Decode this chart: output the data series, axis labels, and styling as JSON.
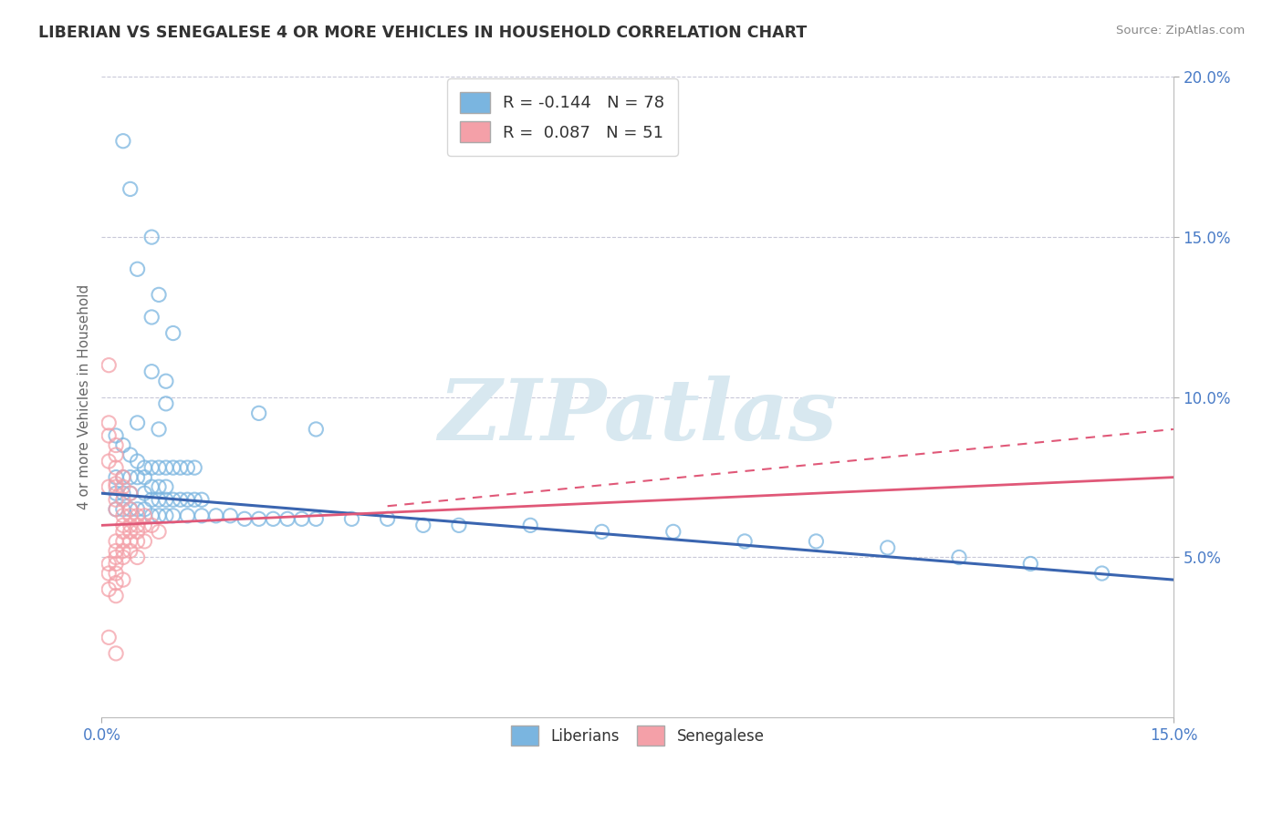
{
  "title": "LIBERIAN VS SENEGALESE 4 OR MORE VEHICLES IN HOUSEHOLD CORRELATION CHART",
  "source": "Source: ZipAtlas.com",
  "ylabel": "4 or more Vehicles in Household",
  "x_min": 0.0,
  "x_max": 0.15,
  "y_min": 0.0,
  "y_max": 0.2,
  "liberian_color": "#7ab5e0",
  "senegalese_color": "#f4a0a8",
  "liberian_line_color": "#3a65b0",
  "senegalese_line_color": "#e05878",
  "liberian_R": -0.144,
  "liberian_N": 78,
  "senegalese_R": 0.087,
  "senegalese_N": 51,
  "watermark_text": "ZIPatlas",
  "watermark_color": "#d8e8f0",
  "tick_color": "#4a7cc7",
  "grid_color": "#c8c8d8",
  "yticks": [
    0.05,
    0.1,
    0.15,
    0.2
  ],
  "ytick_labels": [
    "5.0%",
    "10.0%",
    "15.0%",
    "20.0%"
  ],
  "liberian_points": [
    [
      0.003,
      0.18
    ],
    [
      0.004,
      0.165
    ],
    [
      0.007,
      0.15
    ],
    [
      0.005,
      0.14
    ],
    [
      0.008,
      0.132
    ],
    [
      0.007,
      0.125
    ],
    [
      0.01,
      0.12
    ],
    [
      0.007,
      0.108
    ],
    [
      0.009,
      0.105
    ],
    [
      0.009,
      0.098
    ],
    [
      0.022,
      0.095
    ],
    [
      0.005,
      0.092
    ],
    [
      0.008,
      0.09
    ],
    [
      0.03,
      0.09
    ],
    [
      0.002,
      0.088
    ],
    [
      0.003,
      0.085
    ],
    [
      0.004,
      0.082
    ],
    [
      0.005,
      0.08
    ],
    [
      0.006,
      0.078
    ],
    [
      0.007,
      0.078
    ],
    [
      0.008,
      0.078
    ],
    [
      0.009,
      0.078
    ],
    [
      0.01,
      0.078
    ],
    [
      0.011,
      0.078
    ],
    [
      0.012,
      0.078
    ],
    [
      0.013,
      0.078
    ],
    [
      0.002,
      0.075
    ],
    [
      0.003,
      0.075
    ],
    [
      0.004,
      0.075
    ],
    [
      0.005,
      0.075
    ],
    [
      0.006,
      0.075
    ],
    [
      0.007,
      0.072
    ],
    [
      0.008,
      0.072
    ],
    [
      0.009,
      0.072
    ],
    [
      0.002,
      0.07
    ],
    [
      0.003,
      0.07
    ],
    [
      0.004,
      0.07
    ],
    [
      0.006,
      0.07
    ],
    [
      0.007,
      0.068
    ],
    [
      0.008,
      0.068
    ],
    [
      0.009,
      0.068
    ],
    [
      0.01,
      0.068
    ],
    [
      0.011,
      0.068
    ],
    [
      0.012,
      0.068
    ],
    [
      0.013,
      0.068
    ],
    [
      0.014,
      0.068
    ],
    [
      0.002,
      0.065
    ],
    [
      0.003,
      0.065
    ],
    [
      0.004,
      0.065
    ],
    [
      0.005,
      0.065
    ],
    [
      0.006,
      0.065
    ],
    [
      0.007,
      0.063
    ],
    [
      0.008,
      0.063
    ],
    [
      0.009,
      0.063
    ],
    [
      0.01,
      0.063
    ],
    [
      0.012,
      0.063
    ],
    [
      0.014,
      0.063
    ],
    [
      0.016,
      0.063
    ],
    [
      0.018,
      0.063
    ],
    [
      0.02,
      0.062
    ],
    [
      0.022,
      0.062
    ],
    [
      0.024,
      0.062
    ],
    [
      0.026,
      0.062
    ],
    [
      0.028,
      0.062
    ],
    [
      0.03,
      0.062
    ],
    [
      0.035,
      0.062
    ],
    [
      0.04,
      0.062
    ],
    [
      0.045,
      0.06
    ],
    [
      0.05,
      0.06
    ],
    [
      0.06,
      0.06
    ],
    [
      0.07,
      0.058
    ],
    [
      0.08,
      0.058
    ],
    [
      0.09,
      0.055
    ],
    [
      0.1,
      0.055
    ],
    [
      0.11,
      0.053
    ],
    [
      0.12,
      0.05
    ],
    [
      0.13,
      0.048
    ],
    [
      0.14,
      0.045
    ]
  ],
  "senegalese_points": [
    [
      0.001,
      0.11
    ],
    [
      0.001,
      0.092
    ],
    [
      0.001,
      0.088
    ],
    [
      0.002,
      0.085
    ],
    [
      0.002,
      0.082
    ],
    [
      0.001,
      0.08
    ],
    [
      0.002,
      0.078
    ],
    [
      0.003,
      0.075
    ],
    [
      0.002,
      0.073
    ],
    [
      0.001,
      0.072
    ],
    [
      0.002,
      0.072
    ],
    [
      0.003,
      0.072
    ],
    [
      0.004,
      0.07
    ],
    [
      0.002,
      0.068
    ],
    [
      0.003,
      0.068
    ],
    [
      0.004,
      0.065
    ],
    [
      0.002,
      0.065
    ],
    [
      0.003,
      0.063
    ],
    [
      0.004,
      0.063
    ],
    [
      0.005,
      0.063
    ],
    [
      0.006,
      0.063
    ],
    [
      0.003,
      0.06
    ],
    [
      0.004,
      0.06
    ],
    [
      0.005,
      0.06
    ],
    [
      0.006,
      0.06
    ],
    [
      0.007,
      0.06
    ],
    [
      0.008,
      0.058
    ],
    [
      0.003,
      0.058
    ],
    [
      0.004,
      0.058
    ],
    [
      0.005,
      0.058
    ],
    [
      0.002,
      0.055
    ],
    [
      0.003,
      0.055
    ],
    [
      0.004,
      0.055
    ],
    [
      0.005,
      0.055
    ],
    [
      0.006,
      0.055
    ],
    [
      0.002,
      0.052
    ],
    [
      0.003,
      0.052
    ],
    [
      0.004,
      0.052
    ],
    [
      0.005,
      0.05
    ],
    [
      0.002,
      0.05
    ],
    [
      0.003,
      0.05
    ],
    [
      0.001,
      0.048
    ],
    [
      0.002,
      0.048
    ],
    [
      0.001,
      0.045
    ],
    [
      0.002,
      0.045
    ],
    [
      0.003,
      0.043
    ],
    [
      0.002,
      0.042
    ],
    [
      0.001,
      0.04
    ],
    [
      0.002,
      0.038
    ],
    [
      0.001,
      0.025
    ],
    [
      0.002,
      0.02
    ]
  ]
}
